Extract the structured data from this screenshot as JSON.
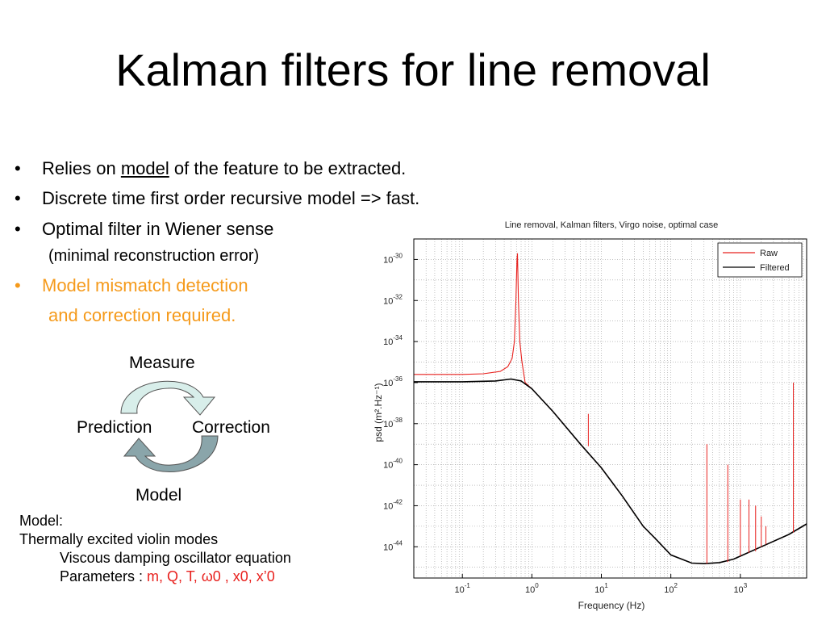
{
  "slide": {
    "title": "Kalman filters for line removal",
    "bullets": [
      {
        "pre": "Relies on ",
        "underlined": "model",
        "post": " of the feature to be extracted."
      },
      {
        "text": "Discrete time first order recursive model => fast."
      },
      {
        "text": "Optimal filter in Wiener sense"
      },
      {
        "text": "Model mismatch detection"
      }
    ],
    "bullet_symbol": "•",
    "sub_line": "(minimal reconstruction error)",
    "orange_continuation": "and correction required.",
    "accent_color": "#f59a1b"
  },
  "cycle": {
    "measure": "Measure",
    "prediction": "Prediction",
    "correction": "Correction",
    "model": "Model",
    "arrow_color_1": "#8aa5aa",
    "arrow_color_2": "#d8eeea"
  },
  "notes": {
    "line1": "Model:",
    "line2": "Thermally excited violin modes",
    "line3": "Viscous damping oscillator equation",
    "params_label": "Parameters : ",
    "params_values": "m, Q, T, ω0 , x0, x’0"
  },
  "chart_data": {
    "type": "line",
    "title": "Line removal, Kalman filters, Virgo noise, optimal case",
    "xlabel": "Frequency (Hz)",
    "ylabel": "psd (m².Hz⁻¹)",
    "xscale": "log",
    "yscale": "log",
    "xlim": [
      0.02,
      9000
    ],
    "ylim": [
      3e-46,
      1e-29
    ],
    "x_ticks": [
      {
        "value": 0.1,
        "label": "10",
        "exp": "-1"
      },
      {
        "value": 1,
        "label": "10",
        "exp": "0"
      },
      {
        "value": 10,
        "label": "10",
        "exp": "1"
      },
      {
        "value": 100,
        "label": "10",
        "exp": "2"
      },
      {
        "value": 1000,
        "label": "10",
        "exp": "3"
      }
    ],
    "y_ticks": [
      {
        "value": 1e-30,
        "label": "10",
        "exp": "-30"
      },
      {
        "value": 1e-32,
        "label": "10",
        "exp": "-32"
      },
      {
        "value": 1e-34,
        "label": "10",
        "exp": "-34"
      },
      {
        "value": 1e-36,
        "label": "10",
        "exp": "-36"
      },
      {
        "value": 1e-38,
        "label": "10",
        "exp": "-38"
      },
      {
        "value": 1e-40,
        "label": "10",
        "exp": "-40"
      },
      {
        "value": 1e-42,
        "label": "10",
        "exp": "-42"
      },
      {
        "value": 1e-44,
        "label": "10",
        "exp": "-44"
      }
    ],
    "grid": true,
    "legend_position": "top-right",
    "series": [
      {
        "name": "Raw",
        "color": "#e8211e",
        "x": [
          0.02,
          0.1,
          0.2,
          0.35,
          0.45,
          0.52,
          0.56,
          0.59,
          0.61,
          0.62,
          0.64,
          0.67,
          0.72,
          0.8,
          1.0,
          2,
          5,
          10,
          20,
          40,
          60,
          100,
          200,
          300,
          500,
          800,
          1000,
          2000,
          5000,
          9000
        ],
        "y": [
          2.5e-36,
          2.5e-36,
          2.7e-36,
          3.5e-36,
          6e-36,
          1.5e-35,
          1e-34,
          1e-32,
          1e-30,
          2e-30,
          1e-32,
          1e-34,
          1e-35,
          1e-36,
          5e-37,
          4e-38,
          1e-39,
          7e-41,
          3e-42,
          1e-43,
          2.5e-44,
          4e-45,
          1.6e-45,
          1.5e-45,
          1.7e-45,
          2.5e-45,
          3.5e-45,
          1e-44,
          4e-44,
          1.3e-43
        ]
      },
      {
        "name": "Filtered",
        "color": "#000000",
        "x": [
          0.02,
          0.1,
          0.3,
          0.5,
          0.7,
          1.0,
          2,
          5,
          10,
          20,
          40,
          60,
          100,
          200,
          300,
          500,
          800,
          1000,
          2000,
          5000,
          9000
        ],
        "y": [
          1.1e-36,
          1.1e-36,
          1.2e-36,
          1.5e-36,
          1.2e-36,
          5e-37,
          4e-38,
          1e-39,
          7e-41,
          3e-42,
          1e-43,
          2.5e-44,
          4e-45,
          1.6e-45,
          1.5e-45,
          1.7e-45,
          2.5e-45,
          3.5e-45,
          1e-44,
          4e-44,
          1.3e-43
        ]
      }
    ],
    "spikes": [
      {
        "x": 6.5,
        "peak": 3e-38,
        "base": 8e-40,
        "color": "#e8211e"
      },
      {
        "x": 330,
        "peak": 1e-39,
        "base": 1.5e-45,
        "color": "#e8211e"
      },
      {
        "x": 660,
        "peak": 1e-40,
        "base": 1.8e-45,
        "color": "#e8211e"
      },
      {
        "x": 1000,
        "peak": 2e-42,
        "base": 3.5e-45,
        "color": "#e8211e"
      },
      {
        "x": 1330,
        "peak": 2e-42,
        "base": 5e-45,
        "color": "#e8211e"
      },
      {
        "x": 1660,
        "peak": 1e-42,
        "base": 6e-45,
        "color": "#e8211e"
      },
      {
        "x": 2000,
        "peak": 3e-43,
        "base": 1e-44,
        "color": "#e8211e"
      },
      {
        "x": 2330,
        "peak": 1e-43,
        "base": 1.3e-44,
        "color": "#e8211e"
      },
      {
        "x": 5800,
        "peak": 1e-36,
        "base": 5e-44,
        "color": "#e8211e"
      }
    ]
  }
}
